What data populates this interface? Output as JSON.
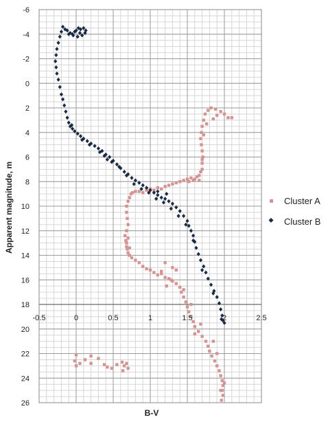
{
  "chart_data": {
    "type": "scatter",
    "xlabel": "B-V",
    "ylabel": "Apparent magnitude, m",
    "xlim": [
      -0.5,
      2.5
    ],
    "ylim": [
      -6,
      26
    ],
    "y_inverted": true,
    "x_ticks": [
      "-0.5",
      "0",
      "0.5",
      "1",
      "1.5",
      "2",
      "2.5"
    ],
    "y_ticks": [
      "-6",
      "-4",
      "-2",
      "0",
      "2",
      "4",
      "6",
      "8",
      "10",
      "12",
      "14",
      "16",
      "18",
      "20",
      "22",
      "24",
      "26"
    ],
    "grid": true,
    "legend_position": "right",
    "series": [
      {
        "name": "Cluster A",
        "color": "#d49494",
        "marker": "square",
        "points": [
          [
            -0.02,
            22.6
          ],
          [
            0.0,
            23.0
          ],
          [
            0.05,
            22.8
          ],
          [
            0.12,
            22.5
          ],
          [
            0.2,
            22.8
          ],
          [
            0.3,
            22.4
          ],
          [
            0.38,
            22.9
          ],
          [
            0.42,
            23.1
          ],
          [
            0.48,
            23.2
          ],
          [
            0.55,
            22.9
          ],
          [
            0.62,
            22.7
          ],
          [
            0.65,
            23.0
          ],
          [
            0.68,
            22.8
          ],
          [
            0.7,
            23.2
          ],
          [
            0.63,
            23.4
          ],
          [
            0.0,
            22.1
          ],
          [
            0.2,
            22.2
          ],
          [
            0.66,
            12.4
          ],
          [
            0.67,
            12.8
          ],
          [
            0.68,
            13.0
          ],
          [
            0.68,
            13.3
          ],
          [
            0.69,
            13.5
          ],
          [
            0.7,
            13.8
          ],
          [
            0.72,
            13.4
          ],
          [
            0.7,
            12.6
          ],
          [
            0.68,
            12.0
          ],
          [
            0.7,
            11.5
          ],
          [
            0.69,
            11.0
          ],
          [
            0.68,
            10.5
          ],
          [
            0.68,
            10.0
          ],
          [
            0.7,
            9.6
          ],
          [
            0.72,
            9.3
          ],
          [
            0.74,
            9.0
          ],
          [
            0.76,
            8.9
          ],
          [
            0.8,
            8.8
          ],
          [
            0.85,
            8.8
          ],
          [
            0.9,
            8.9
          ],
          [
            0.95,
            8.7
          ],
          [
            1.0,
            8.6
          ],
          [
            1.05,
            8.7
          ],
          [
            1.1,
            8.5
          ],
          [
            1.15,
            8.6
          ],
          [
            1.2,
            8.4
          ],
          [
            1.25,
            8.3
          ],
          [
            1.3,
            8.2
          ],
          [
            1.35,
            8.1
          ],
          [
            1.4,
            8.0
          ],
          [
            1.45,
            7.9
          ],
          [
            1.5,
            7.8
          ],
          [
            1.55,
            7.7
          ],
          [
            1.6,
            7.8
          ],
          [
            1.63,
            7.6
          ],
          [
            1.66,
            7.5
          ],
          [
            1.68,
            7.2
          ],
          [
            1.7,
            7.0
          ],
          [
            1.7,
            6.5
          ],
          [
            1.71,
            6.0
          ],
          [
            1.7,
            5.5
          ],
          [
            1.69,
            5.0
          ],
          [
            1.68,
            4.5
          ],
          [
            1.69,
            4.0
          ],
          [
            1.7,
            3.5
          ],
          [
            1.72,
            3.0
          ],
          [
            1.74,
            2.5
          ],
          [
            1.78,
            2.2
          ],
          [
            1.82,
            2.0
          ],
          [
            1.88,
            2.1
          ],
          [
            1.95,
            2.3
          ],
          [
            2.0,
            2.5
          ],
          [
            2.05,
            2.8
          ],
          [
            1.9,
            2.6
          ],
          [
            2.1,
            2.8
          ],
          [
            1.85,
            2.9
          ],
          [
            1.76,
            3.3
          ],
          [
            1.72,
            4.2
          ],
          [
            1.7,
            6.2
          ],
          [
            1.66,
            7.9
          ],
          [
            1.58,
            7.9
          ],
          [
            1.52,
            8.0
          ],
          [
            0.72,
            14.0
          ],
          [
            0.75,
            14.2
          ],
          [
            0.8,
            14.4
          ],
          [
            0.85,
            14.6
          ],
          [
            0.9,
            14.9
          ],
          [
            0.95,
            15.1
          ],
          [
            1.0,
            15.2
          ],
          [
            1.05,
            15.4
          ],
          [
            1.1,
            15.6
          ],
          [
            1.15,
            15.5
          ],
          [
            1.2,
            15.8
          ],
          [
            1.25,
            15.9
          ],
          [
            1.3,
            16.1
          ],
          [
            1.35,
            16.3
          ],
          [
            1.4,
            16.6
          ],
          [
            1.42,
            17.0
          ],
          [
            1.45,
            17.4
          ],
          [
            1.48,
            17.8
          ],
          [
            1.5,
            18.2
          ],
          [
            1.52,
            18.6
          ],
          [
            1.55,
            19.0
          ],
          [
            1.58,
            19.4
          ],
          [
            1.6,
            19.8
          ],
          [
            1.65,
            20.2
          ],
          [
            1.7,
            20.6
          ],
          [
            1.75,
            21.0
          ],
          [
            1.78,
            21.4
          ],
          [
            1.8,
            21.8
          ],
          [
            1.83,
            22.2
          ],
          [
            1.87,
            22.6
          ],
          [
            1.9,
            23.0
          ],
          [
            1.93,
            23.4
          ],
          [
            1.95,
            23.8
          ],
          [
            1.97,
            24.2
          ],
          [
            1.98,
            24.6
          ],
          [
            1.97,
            25.0
          ],
          [
            1.98,
            25.4
          ],
          [
            1.96,
            25.8
          ],
          [
            1.2,
            14.6
          ],
          [
            1.35,
            15.2
          ],
          [
            1.3,
            15.0
          ],
          [
            1.45,
            16.8
          ],
          [
            1.55,
            18.0
          ],
          [
            1.68,
            19.6
          ],
          [
            1.85,
            21.0
          ],
          [
            1.9,
            22.0
          ],
          [
            2.0,
            24.4
          ],
          [
            1.95,
            25.0
          ],
          [
            1.22,
            16.5
          ],
          [
            1.28,
            16.0
          ],
          [
            1.15,
            15.3
          ],
          [
            1.6,
            20.4
          ]
        ]
      },
      {
        "name": "Cluster B",
        "color": "#1a2a44",
        "marker": "diamond",
        "points": [
          [
            -0.12,
            -4.3
          ],
          [
            -0.08,
            -4.1
          ],
          [
            -0.05,
            -4.0
          ],
          [
            -0.02,
            -4.2
          ],
          [
            0.0,
            -4.3
          ],
          [
            0.03,
            -4.5
          ],
          [
            0.06,
            -4.4
          ],
          [
            0.1,
            -4.5
          ],
          [
            0.13,
            -4.3
          ],
          [
            0.12,
            -4.1
          ],
          [
            0.08,
            -3.9
          ],
          [
            0.05,
            -4.1
          ],
          [
            0.02,
            -3.8
          ],
          [
            -0.04,
            -3.9
          ],
          [
            -0.1,
            -4.0
          ],
          [
            -0.15,
            -4.4
          ],
          [
            -0.18,
            -4.6
          ],
          [
            -0.2,
            -4.2
          ],
          [
            -0.22,
            -3.8
          ],
          [
            -0.24,
            -3.3
          ],
          [
            -0.26,
            -2.8
          ],
          [
            -0.27,
            -2.3
          ],
          [
            -0.28,
            -1.8
          ],
          [
            -0.27,
            -1.3
          ],
          [
            -0.26,
            -0.8
          ],
          [
            -0.24,
            -0.3
          ],
          [
            -0.22,
            0.3
          ],
          [
            -0.2,
            0.9
          ],
          [
            -0.18,
            1.3
          ],
          [
            -0.16,
            1.8
          ],
          [
            -0.14,
            2.3
          ],
          [
            -0.12,
            2.8
          ],
          [
            -0.1,
            3.2
          ],
          [
            -0.08,
            3.5
          ],
          [
            -0.05,
            3.7
          ],
          [
            -0.02,
            3.9
          ],
          [
            0.02,
            4.1
          ],
          [
            0.06,
            4.3
          ],
          [
            0.1,
            4.5
          ],
          [
            0.15,
            4.7
          ],
          [
            0.2,
            4.9
          ],
          [
            0.25,
            5.1
          ],
          [
            0.3,
            5.3
          ],
          [
            0.35,
            5.5
          ],
          [
            0.4,
            5.8
          ],
          [
            0.45,
            6.0
          ],
          [
            0.5,
            6.3
          ],
          [
            0.55,
            6.6
          ],
          [
            0.6,
            6.9
          ],
          [
            0.65,
            7.2
          ],
          [
            0.7,
            7.4
          ],
          [
            0.75,
            7.7
          ],
          [
            0.8,
            7.9
          ],
          [
            0.85,
            8.1
          ],
          [
            0.9,
            8.3
          ],
          [
            0.95,
            8.5
          ],
          [
            1.0,
            8.7
          ],
          [
            1.05,
            8.9
          ],
          [
            1.1,
            9.1
          ],
          [
            1.15,
            9.3
          ],
          [
            1.2,
            9.4
          ],
          [
            1.25,
            9.6
          ],
          [
            1.3,
            9.8
          ],
          [
            1.35,
            10.1
          ],
          [
            1.4,
            10.4
          ],
          [
            1.45,
            10.8
          ],
          [
            1.5,
            11.2
          ],
          [
            1.52,
            11.6
          ],
          [
            1.55,
            12.0
          ],
          [
            1.58,
            12.4
          ],
          [
            1.6,
            12.9
          ],
          [
            1.62,
            13.4
          ],
          [
            1.65,
            13.9
          ],
          [
            1.68,
            14.4
          ],
          [
            1.72,
            14.9
          ],
          [
            1.75,
            15.4
          ],
          [
            1.78,
            15.9
          ],
          [
            1.82,
            16.4
          ],
          [
            1.86,
            16.9
          ],
          [
            1.9,
            17.4
          ],
          [
            1.93,
            17.9
          ],
          [
            1.95,
            18.4
          ],
          [
            1.97,
            18.9
          ],
          [
            1.98,
            19.3
          ],
          [
            2.0,
            19.5
          ],
          [
            1.96,
            19.2
          ],
          [
            0.32,
            5.6
          ],
          [
            0.38,
            5.9
          ],
          [
            0.42,
            6.2
          ],
          [
            0.48,
            6.4
          ],
          [
            0.58,
            6.8
          ],
          [
            0.68,
            7.5
          ],
          [
            0.78,
            8.2
          ],
          [
            0.88,
            8.6
          ],
          [
            0.98,
            8.9
          ],
          [
            1.08,
            9.4
          ],
          [
            1.18,
            9.7
          ],
          [
            1.28,
            10.2
          ],
          [
            1.38,
            10.8
          ],
          [
            1.48,
            11.5
          ],
          [
            1.58,
            12.8
          ],
          [
            1.7,
            15.2
          ],
          [
            1.85,
            17.1
          ],
          [
            0.08,
            4.6
          ],
          [
            0.18,
            5.0
          ],
          [
            -0.06,
            3.4
          ],
          [
            1.1,
            8.8
          ],
          [
            1.22,
            9.0
          ]
        ]
      }
    ]
  }
}
